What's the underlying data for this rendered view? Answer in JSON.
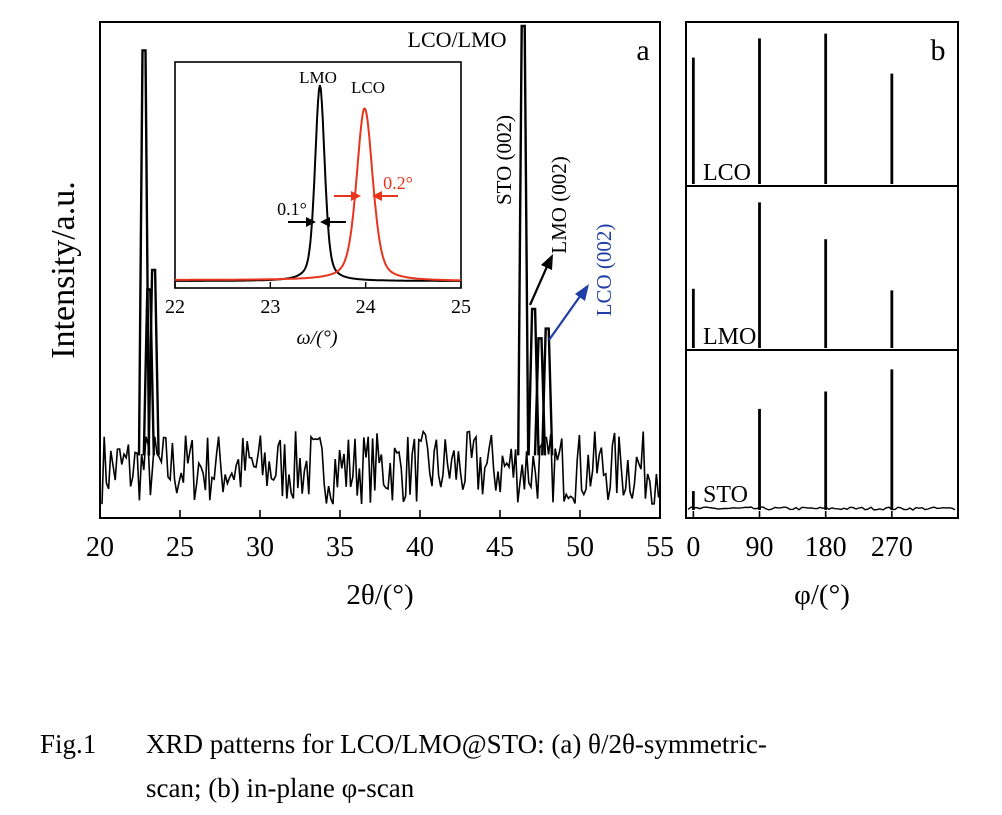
{
  "chart_data": [
    {
      "panel": "a",
      "type": "line",
      "xlabel": "2θ/(°)",
      "ylabel": "Intensity/a.u.",
      "xlim": [
        20,
        55
      ],
      "xticks": [
        "20",
        "25",
        "30",
        "35",
        "40",
        "45",
        "50",
        "55"
      ],
      "grid": false,
      "series": [
        {
          "color": "#000000",
          "peaks": [
            {
              "x": 22.75,
              "y": 95
            },
            {
              "x": 23.05,
              "y": 46
            },
            {
              "x": 23.35,
              "y": 50
            },
            {
              "x": 46.45,
              "y": 100
            },
            {
              "x": 47.1,
              "y": 42
            },
            {
              "x": 47.5,
              "y": 36
            },
            {
              "x": 47.95,
              "y": 38
            }
          ],
          "noise_band": [
            2,
            17
          ]
        }
      ],
      "annotations": [
        {
          "text": "LCO/LMO",
          "x": 46.45
        },
        {
          "text": "STO (002)",
          "x": 46.3,
          "rotation": "vertical"
        },
        {
          "text": "LMO (002)",
          "x": 47.5,
          "rotation": "vertical",
          "color": "#000000"
        },
        {
          "text": "LCO (002)",
          "x": 48.0,
          "rotation": "vertical",
          "color": "#1f3ea6"
        }
      ],
      "inset": {
        "type": "line",
        "xlabel": "ω/(°)",
        "xlim": [
          22,
          25
        ],
        "xticks": [
          "22",
          "23",
          "24",
          "25"
        ],
        "series": [
          {
            "name": "LMO",
            "color": "#000000",
            "center": 23.52,
            "fwhm_label": "0.1°",
            "peak": 100,
            "fwhm": 0.12
          },
          {
            "name": "LCO",
            "color": "#e8341c",
            "center": 23.99,
            "fwhm_label": "0.2°",
            "peak": 88,
            "fwhm": 0.2
          }
        ]
      }
    },
    {
      "panel": "b",
      "type": "line",
      "xlabel": "φ/(°)",
      "xlim": [
        -10,
        360
      ],
      "xticks": [
        "0",
        "90",
        "180",
        "270"
      ],
      "grid": false,
      "series": [
        {
          "name": "LCO",
          "peaks": [
            {
              "x": 0,
              "y": 79
            },
            {
              "x": 90,
              "y": 91
            },
            {
              "x": 180,
              "y": 94
            },
            {
              "x": 270,
              "y": 69
            }
          ]
        },
        {
          "name": "LMO",
          "peaks": [
            {
              "x": 0,
              "y": 37
            },
            {
              "x": 90,
              "y": 91
            },
            {
              "x": 180,
              "y": 68
            },
            {
              "x": 270,
              "y": 36
            }
          ]
        },
        {
          "name": "STO",
          "peaks": [
            {
              "x": 0,
              "y": 12
            },
            {
              "x": 90,
              "y": 64
            },
            {
              "x": 180,
              "y": 75
            },
            {
              "x": 270,
              "y": 89
            }
          ]
        }
      ]
    }
  ],
  "labels": {
    "panel_a": "a",
    "panel_b": "b"
  },
  "caption": {
    "number": "Fig.1",
    "line1": "XRD patterns for LCO/LMO@STO: (a) θ/2θ-symmetric-",
    "line2": "scan; (b) in-plane φ-scan"
  }
}
